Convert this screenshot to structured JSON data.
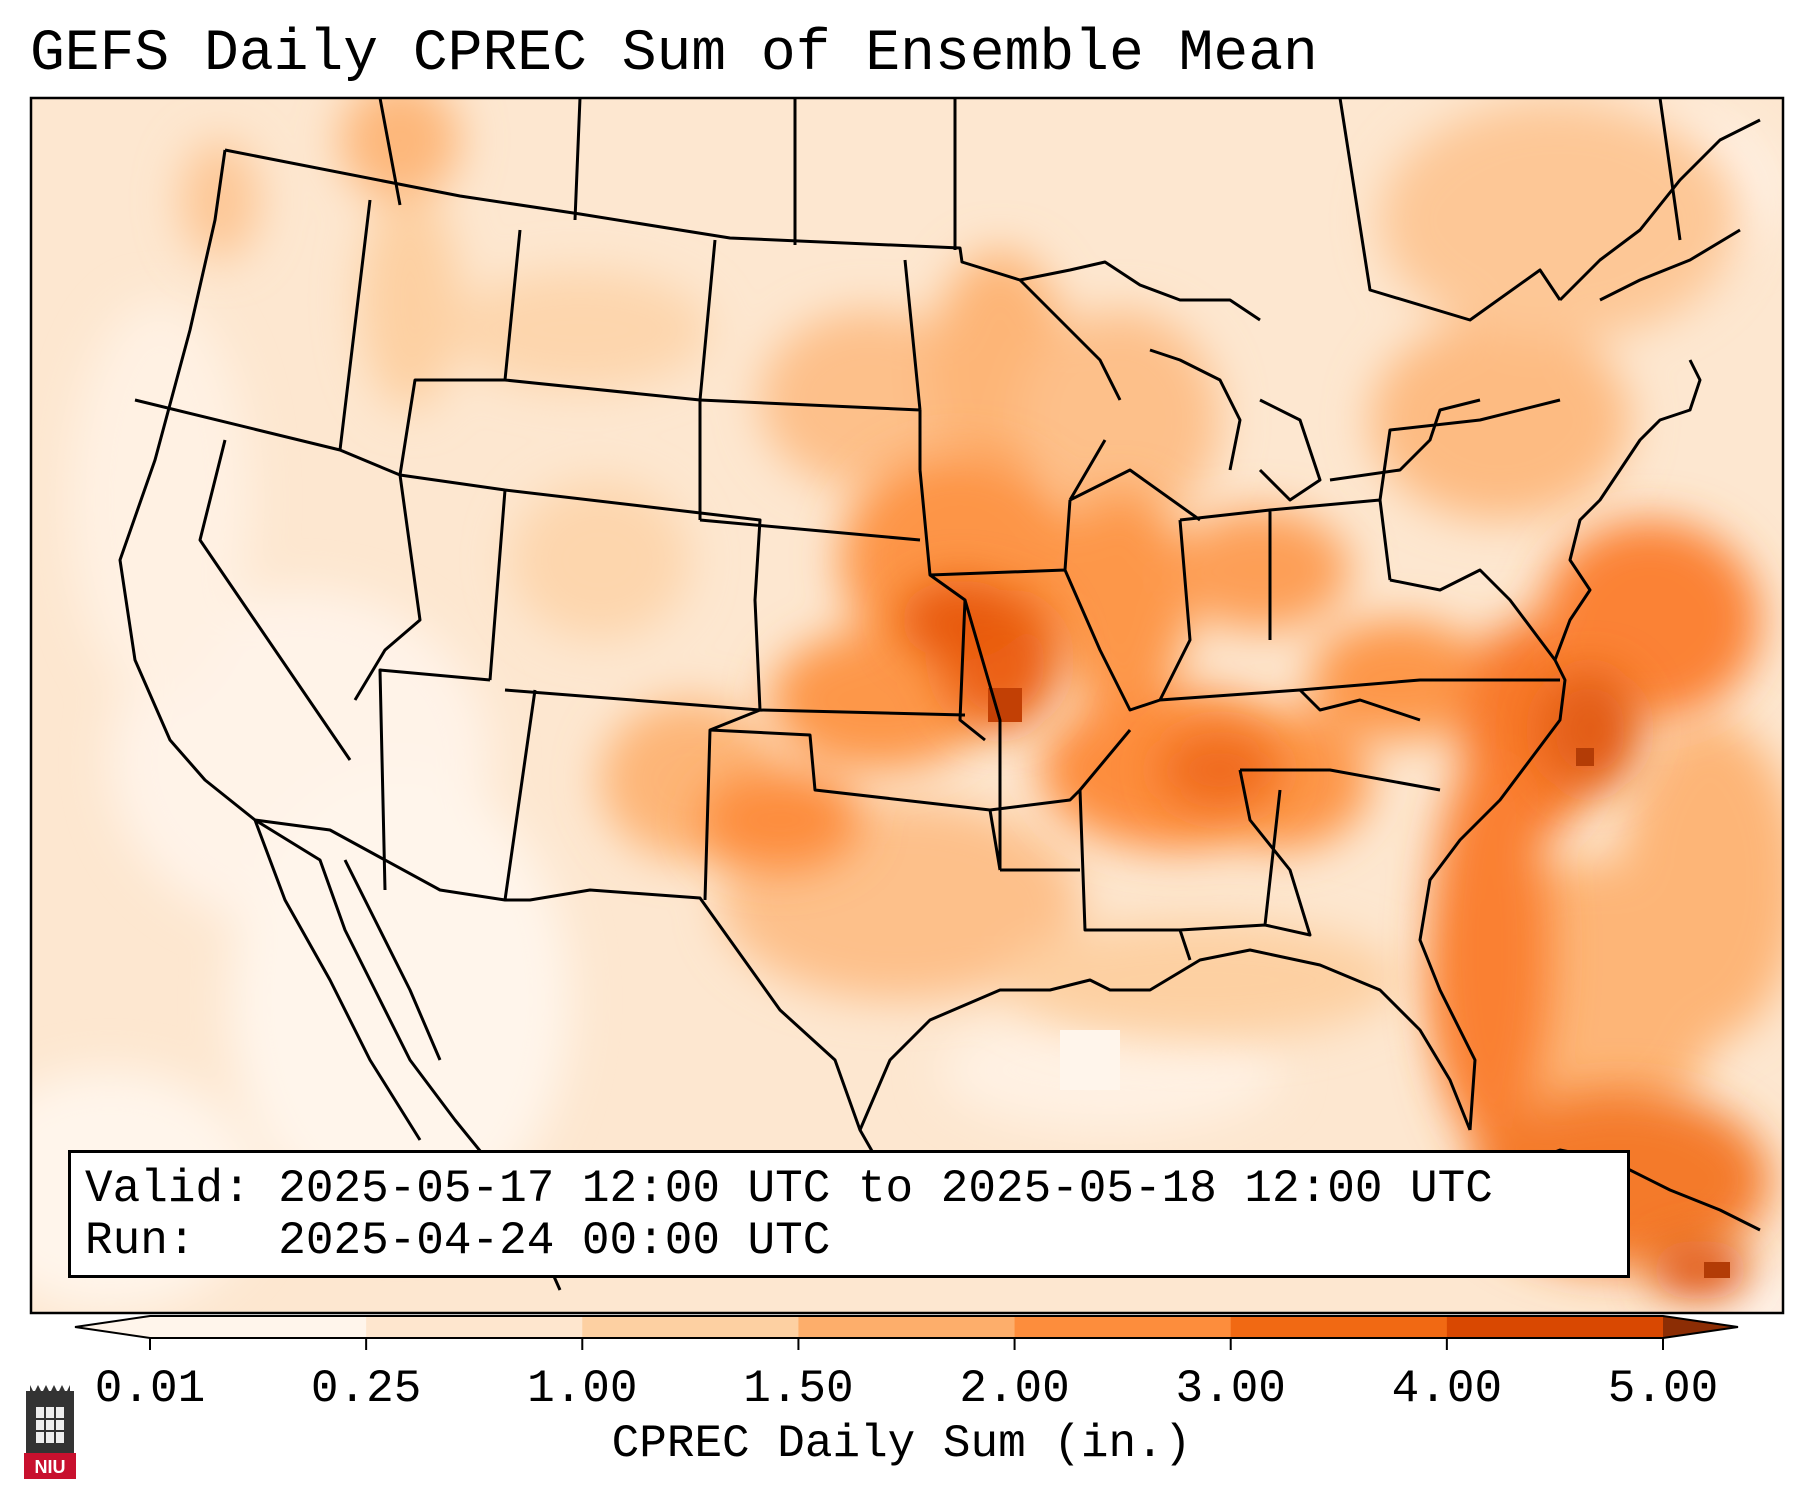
{
  "title": "GEFS Daily CPREC Sum of Ensemble Mean",
  "info": {
    "valid_label": "Valid:",
    "valid_value": "2025-05-17 12:00 UTC to 2025-05-18 12:00 UTC",
    "run_label": "Run:",
    "run_value": "2025-04-24 00:00 UTC"
  },
  "colorbar": {
    "label": "CPREC Daily Sum (in.)",
    "ticks": [
      "0.01",
      "0.25",
      "1.00",
      "1.50",
      "2.00",
      "3.00",
      "4.00",
      "5.00"
    ],
    "colors": [
      "#fff5eb",
      "#fee6ce",
      "#fdd0a2",
      "#fdae6b",
      "#fd8d3c",
      "#f16913",
      "#d94801",
      "#8c2d04"
    ],
    "extend": "both"
  },
  "map": {
    "domain": "CONUS",
    "projection": "Lambert Conformal",
    "ocean_color": "#fde8d2",
    "border_color": "#000000"
  },
  "logo": {
    "text": "NIU",
    "color": "#c8102e"
  }
}
